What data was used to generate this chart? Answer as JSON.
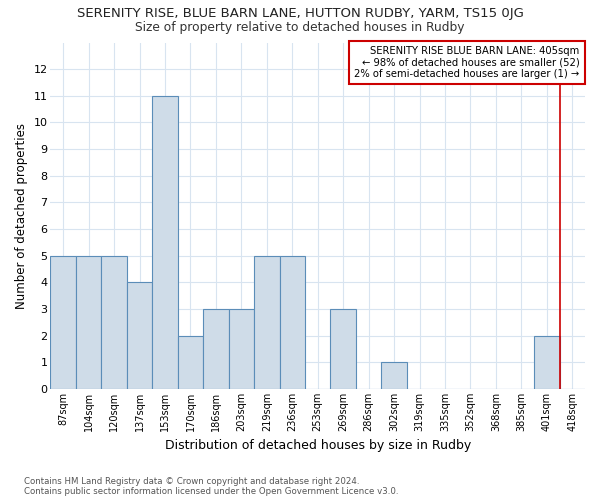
{
  "title": "SERENITY RISE, BLUE BARN LANE, HUTTON RUDBY, YARM, TS15 0JG",
  "subtitle": "Size of property relative to detached houses in Rudby",
  "xlabel": "Distribution of detached houses by size in Rudby",
  "ylabel": "Number of detached properties",
  "bar_labels": [
    "87sqm",
    "104sqm",
    "120sqm",
    "137sqm",
    "153sqm",
    "170sqm",
    "186sqm",
    "203sqm",
    "219sqm",
    "236sqm",
    "253sqm",
    "269sqm",
    "286sqm",
    "302sqm",
    "319sqm",
    "335sqm",
    "352sqm",
    "368sqm",
    "385sqm",
    "401sqm",
    "418sqm"
  ],
  "bar_values": [
    5,
    5,
    5,
    4,
    11,
    2,
    3,
    3,
    5,
    5,
    0,
    3,
    0,
    1,
    0,
    0,
    0,
    0,
    0,
    2,
    0
  ],
  "bar_color": "#cfdce8",
  "bar_edge_color": "#5b8db8",
  "property_line_x": 19.5,
  "property_line_label": "SERENITY RISE BLUE BARN LANE: 405sqm",
  "annotation_line1": "← 98% of detached houses are smaller (52)",
  "annotation_line2": "2% of semi-detached houses are larger (1) →",
  "annotation_box_color": "#cc0000",
  "ylim": [
    0,
    13
  ],
  "yticks": [
    0,
    1,
    2,
    3,
    4,
    5,
    6,
    7,
    8,
    9,
    10,
    11,
    12,
    13
  ],
  "footer_line1": "Contains HM Land Registry data © Crown copyright and database right 2024.",
  "footer_line2": "Contains public sector information licensed under the Open Government Licence v3.0.",
  "bg_color": "#ffffff",
  "grid_color": "#d8e4f0"
}
